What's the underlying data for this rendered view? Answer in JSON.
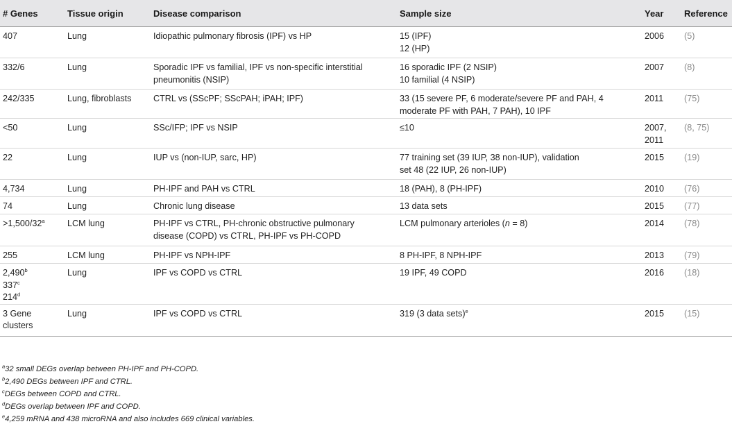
{
  "headers": [
    "# Genes",
    "Tissue origin",
    "Disease comparison",
    "Sample size",
    "Year",
    "Reference"
  ],
  "rows": [
    {
      "genes": [
        "407"
      ],
      "tissue": "Lung",
      "disease": [
        "Idiopathic pulmonary fibrosis (IPF) vs HP"
      ],
      "sample": [
        "15 (IPF)",
        "12 (HP)"
      ],
      "year": [
        "2006"
      ],
      "ref": "(5)"
    },
    {
      "genes": [
        "332/6"
      ],
      "tissue": "Lung",
      "disease": [
        "Sporadic IPF vs familial, IPF vs non-specific interstitial",
        "pneumonitis (NSIP)"
      ],
      "sample": [
        "16 sporadic IPF (2 NSIP)",
        "10 familial (4 NSIP)"
      ],
      "year": [
        "2007"
      ],
      "ref": "(8)"
    },
    {
      "genes": [
        "242/335"
      ],
      "tissue": "Lung, fibroblasts",
      "disease": [
        "CTRL vs (SScPF; SScPAH; iPAH; IPF)"
      ],
      "sample": [
        "33 (15 severe PF, 6 moderate/severe PF and PAH, 4",
        "moderate PF with PAH, 7 PAH), 10 IPF"
      ],
      "year": [
        "2011"
      ],
      "ref": "(75)"
    },
    {
      "genes": [
        "<50"
      ],
      "tissue": "Lung",
      "disease": [
        "SSc/IFP; IPF vs NSIP"
      ],
      "sample": [
        "≤10"
      ],
      "year": [
        "2007,",
        "2011"
      ],
      "ref": "(8, 75)"
    },
    {
      "genes": [
        "22"
      ],
      "tissue": "Lung",
      "disease": [
        "IUP vs (non-IUP, sarc, HP)"
      ],
      "sample": [
        "77 training set (39 IUP, 38 non-IUP), validation",
        "set 48 (22 IUP, 26 non-IUP)"
      ],
      "year": [
        "2015"
      ],
      "ref": "(19)"
    },
    {
      "genes": [
        "4,734"
      ],
      "tissue": "Lung",
      "disease": [
        "PH-IPF and PAH vs CTRL"
      ],
      "sample": [
        "18 (PAH), 8 (PH-IPF)"
      ],
      "year": [
        "2010"
      ],
      "ref": "(76)"
    },
    {
      "genes": [
        "74"
      ],
      "tissue": "Lung",
      "disease": [
        "Chronic lung disease"
      ],
      "sample": [
        "13 data sets"
      ],
      "year": [
        "2015"
      ],
      "ref": "(77)"
    },
    {
      "genes": [
        ">1,500/32"
      ],
      "genes_sup": [
        "a"
      ],
      "tissue": "LCM lung",
      "disease": [
        "PH-IPF vs CTRL, PH-chronic obstructive pulmonary",
        "disease (COPD) vs CTRL, PH-IPF vs PH-COPD"
      ],
      "sample_rich": {
        "before": "LCM pulmonary arterioles (",
        "italic": "n",
        "after": " = 8)"
      },
      "year": [
        "2014"
      ],
      "ref": "(78)"
    },
    {
      "genes": [
        "255"
      ],
      "tissue": "LCM lung",
      "disease": [
        "PH-IPF vs NPH-IPF"
      ],
      "sample": [
        "8 PH-IPF, 8 NPH-IPF"
      ],
      "year": [
        "2013"
      ],
      "ref": "(79)"
    },
    {
      "genes": [
        "2,490",
        "337",
        "214"
      ],
      "genes_sup": [
        "b",
        "c",
        "d"
      ],
      "tissue": "Lung",
      "disease": [
        "IPF vs COPD vs CTRL"
      ],
      "sample": [
        "19 IPF, 49 COPD"
      ],
      "year": [
        "2016"
      ],
      "ref": "(18)"
    },
    {
      "genes": [
        "3 Gene",
        "clusters"
      ],
      "tissue": "Lung",
      "disease": [
        "IPF vs COPD vs CTRL"
      ],
      "sample": [
        "319 (3 data sets)"
      ],
      "sample_sup": "e",
      "year": [
        "2015"
      ],
      "ref": "(15)"
    }
  ],
  "footnotes": [
    {
      "mark": "a",
      "text": "32 small DEGs overlap between PH-IPF and PH-COPD."
    },
    {
      "mark": "b",
      "text": "2,490 DEGs between IPF and CTRL."
    },
    {
      "mark": "c",
      "text": "DEGs between COPD and CTRL."
    },
    {
      "mark": "d",
      "text": "DEGs overlap between IPF and COPD."
    },
    {
      "mark": "e",
      "text": "4,259 mRNA and 438 microRNA and also includes 669 clinical variables."
    }
  ]
}
